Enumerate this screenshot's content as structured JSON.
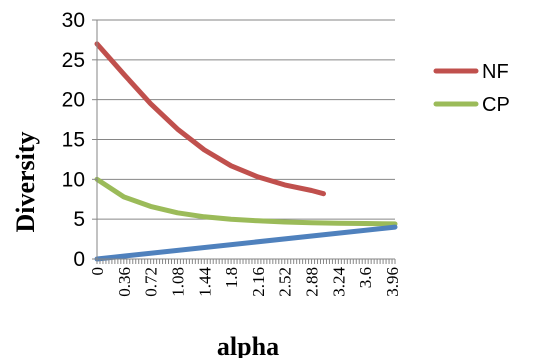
{
  "chart_data": {
    "type": "line",
    "xlabel": "alpha",
    "ylabel": "Diversity",
    "ylim": [
      0,
      30
    ],
    "yticks": [
      0,
      5,
      10,
      15,
      20,
      25,
      30
    ],
    "xlim": [
      0,
      4
    ],
    "xticks": [
      "0",
      "0.36",
      "0.72",
      "1.08",
      "1.44",
      "1.8",
      "2.16",
      "2.52",
      "2.88",
      "3.24",
      "3.6",
      "3.96"
    ],
    "grid": "horizontal",
    "legend_position": "right",
    "series": [
      {
        "name": "NF",
        "color": "#c0504d",
        "x": [
          0,
          0.36,
          0.72,
          1.08,
          1.44,
          1.8,
          2.16,
          2.52,
          2.88,
          3.04
        ],
        "y": [
          27,
          23.2,
          19.5,
          16.3,
          13.7,
          11.7,
          10.3,
          9.3,
          8.6,
          8.2
        ]
      },
      {
        "name": "CP",
        "color": "#9bbb59",
        "x": [
          0,
          0.36,
          0.72,
          1.08,
          1.44,
          1.8,
          2.16,
          2.52,
          2.88,
          3.24,
          3.6,
          4.0
        ],
        "y": [
          10,
          7.8,
          6.6,
          5.8,
          5.3,
          5.0,
          4.8,
          4.65,
          4.55,
          4.5,
          4.45,
          4.4
        ]
      },
      {
        "color": "#4f81bd",
        "x": [
          0,
          4.0
        ],
        "y": [
          0,
          4.0
        ]
      }
    ]
  }
}
